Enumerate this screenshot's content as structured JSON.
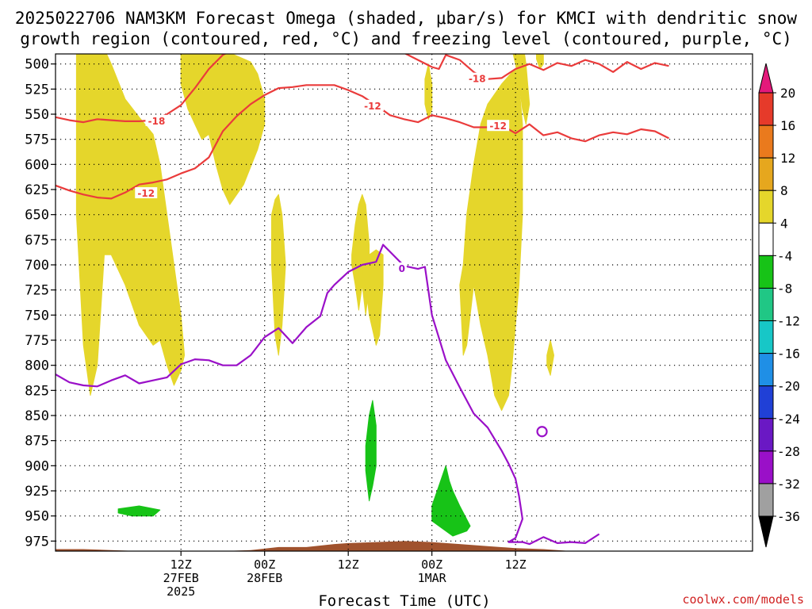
{
  "chart_data": {
    "type": "heatmap",
    "title_line1": "2025022706 NAM3KM Forecast Omega (shaded, μbar/s) for KMCI with dendritic snow",
    "title_line2": "growth region (contoured, red, °C) and freezing level (contoured, purple, °C)",
    "xlabel": "Forecast Time (UTC)",
    "credit": "coolwx.com/models",
    "y_axis": {
      "scale": "pressure (hPa)",
      "ticks": [
        500,
        525,
        550,
        575,
        600,
        625,
        650,
        675,
        700,
        725,
        750,
        775,
        800,
        825,
        850,
        875,
        900,
        925,
        950,
        975
      ],
      "ylim": [
        490,
        985
      ]
    },
    "x_axis": {
      "xlim": [
        -12,
        88
      ],
      "ticks": [
        {
          "h": 6,
          "line1": "12Z",
          "line2": "27FEB",
          "line3": "2025"
        },
        {
          "h": 18,
          "line1": "00Z",
          "line2": "28FEB",
          "line3": ""
        },
        {
          "h": 30,
          "line1": "12Z",
          "line2": "",
          "line3": ""
        },
        {
          "h": 42,
          "line1": "00Z",
          "line2": "1MAR",
          "line3": ""
        },
        {
          "h": 54,
          "line1": "12Z",
          "line2": "",
          "line3": ""
        }
      ]
    },
    "colorbar": {
      "labels": [
        "20",
        "16",
        "12",
        "8",
        "4",
        "-4",
        "-8",
        "-12",
        "-16",
        "-20",
        "-24",
        "-28",
        "-32",
        "-36"
      ],
      "colors": [
        "#e4197b",
        "#e63a2a",
        "#ea7a1d",
        "#e6a71e",
        "#e5d62b",
        "#ffffff",
        "#17c317",
        "#20c785",
        "#17c7c7",
        "#1f8fe6",
        "#2040d6",
        "#6a18c4",
        "#9a10c8",
        "#a0a0a0"
      ]
    },
    "colors": {
      "shade_low": "#e5d62b",
      "shade_sink": "#17c317",
      "dgz": "#ea3b3b",
      "freezing": "#9a10c8",
      "terrain": "#a0522d"
    },
    "contour_labels": [
      {
        "text": "-18",
        "h": 2.5,
        "p": 557,
        "color": "dgz"
      },
      {
        "text": "-12",
        "h": 1.0,
        "p": 629,
        "color": "dgz"
      },
      {
        "text": "-12",
        "h": 33.5,
        "p": 542,
        "color": "dgz"
      },
      {
        "text": "-18",
        "h": 48.5,
        "p": 515,
        "color": "dgz"
      },
      {
        "text": "-12",
        "h": 51.5,
        "p": 562,
        "color": "dgz"
      },
      {
        "text": "0",
        "h": 37.7,
        "p": 704,
        "color": "freezing"
      }
    ],
    "series": [
      {
        "name": "-18",
        "kind": "dgz",
        "x": [
          -12,
          -10,
          -8,
          -6,
          -4,
          -2,
          0,
          2,
          4,
          6,
          8,
          10,
          12,
          14,
          16,
          18
        ],
        "y": [
          553,
          556,
          558,
          555,
          556,
          557,
          557,
          556,
          550,
          541,
          524,
          505,
          491,
          484,
          479,
          476
        ]
      },
      {
        "name": "-18",
        "kind": "dgz",
        "x": [
          34,
          36,
          38,
          40,
          42,
          43,
          44,
          46,
          48,
          49,
          50,
          52,
          54,
          56,
          58,
          60,
          62,
          64,
          66,
          68,
          70,
          72,
          74,
          76
        ],
        "y": [
          478,
          482,
          489,
          496,
          503,
          505,
          491,
          496,
          508,
          512,
          515,
          514,
          505,
          500,
          506,
          499,
          502,
          496,
          500,
          508,
          498,
          505,
          499,
          502
        ]
      },
      {
        "name": "-12",
        "kind": "dgz",
        "x": [
          -12,
          -10,
          -8,
          -6,
          -4,
          -2,
          0,
          2,
          4,
          6,
          8,
          10,
          12,
          14,
          16,
          18,
          20,
          22,
          24,
          26,
          28,
          30,
          32,
          34,
          36,
          38,
          40,
          42,
          44,
          46,
          48,
          50,
          52,
          54,
          56,
          58,
          60,
          62,
          64,
          66,
          68,
          70,
          72,
          74,
          76
        ],
        "y": [
          621,
          626,
          630,
          633,
          634,
          628,
          620,
          618,
          615,
          609,
          604,
          593,
          567,
          552,
          540,
          531,
          524,
          523,
          521,
          521,
          521,
          526,
          532,
          541,
          551,
          555,
          558,
          551,
          554,
          558,
          563,
          563,
          561,
          569,
          560,
          571,
          568,
          574,
          577,
          571,
          568,
          570,
          565,
          567,
          574
        ]
      },
      {
        "name": "0",
        "kind": "freezing",
        "x": [
          -12,
          -10,
          -8,
          -6,
          -4,
          -2,
          0,
          2,
          4,
          6,
          8,
          10,
          12,
          14,
          16,
          18,
          20,
          22,
          24,
          26,
          27,
          28,
          30,
          32,
          34,
          35,
          36,
          38,
          40,
          41,
          42,
          44,
          46,
          47,
          48,
          50,
          52,
          53,
          54,
          54.5,
          55,
          54,
          53,
          55,
          56,
          58,
          60,
          62,
          64,
          66
        ],
        "y": [
          809,
          817,
          820,
          821,
          815,
          810,
          818,
          815,
          812,
          799,
          794,
          795,
          800,
          800,
          790,
          772,
          763,
          778,
          762,
          751,
          728,
          720,
          707,
          700,
          697,
          680,
          687,
          701,
          704,
          702,
          750,
          795,
          822,
          835,
          848,
          862,
          885,
          898,
          913,
          930,
          953,
          972,
          976,
          976,
          978,
          971,
          977,
          976,
          977,
          968
        ]
      }
    ],
    "regions": [
      {
        "kind": "up",
        "h": [
          -9,
          -7,
          -5,
          -4,
          -2,
          0,
          2,
          3,
          4,
          5,
          6,
          6.5,
          6,
          5,
          4,
          3,
          2,
          0,
          -2,
          -4,
          -5,
          -6,
          -7,
          -8,
          -9,
          -9
        ],
        "p": [
          485,
          485,
          485,
          500,
          535,
          553,
          570,
          600,
          650,
          700,
          750,
          790,
          805,
          820,
          800,
          775,
          780,
          760,
          720,
          690,
          690,
          800,
          830,
          780,
          650,
          600
        ]
      },
      {
        "kind": "up",
        "h": [
          6,
          8,
          9,
          10,
          12,
          14,
          16,
          17,
          18,
          18,
          17,
          15,
          13,
          12,
          11,
          10,
          9,
          8,
          7,
          6
        ],
        "p": [
          485,
          485,
          485,
          485,
          486,
          492,
          498,
          510,
          535,
          560,
          585,
          620,
          640,
          625,
          600,
          570,
          575,
          560,
          545,
          520
        ]
      },
      {
        "kind": "up",
        "h": [
          19,
          19.5,
          20,
          20.5,
          21,
          20.5,
          20,
          19.5,
          19
        ],
        "p": [
          650,
          635,
          630,
          650,
          700,
          760,
          790,
          770,
          700
        ]
      },
      {
        "kind": "up",
        "h": [
          30.5,
          31,
          31.5,
          32,
          32.5,
          33,
          33,
          32.5,
          32,
          31.5,
          31,
          30.5
        ],
        "p": [
          690,
          660,
          640,
          630,
          640,
          680,
          720,
          750,
          720,
          745,
          720,
          700
        ]
      },
      {
        "kind": "up",
        "h": [
          32,
          33,
          34,
          35,
          35,
          34.5,
          34,
          33,
          32.5,
          32
        ],
        "p": [
          700,
          690,
          685,
          690,
          720,
          770,
          780,
          750,
          720,
          710
        ]
      },
      {
        "kind": "up",
        "h": [
          46.5,
          47,
          48,
          49,
          50,
          51,
          52,
          53,
          54,
          54.5,
          55,
          55,
          54.5,
          54,
          53.5,
          53,
          52,
          51,
          50,
          49,
          48,
          47,
          46.5,
          46
        ],
        "p": [
          700,
          650,
          600,
          560,
          540,
          530,
          520,
          512,
          505,
          520,
          560,
          650,
          720,
          760,
          800,
          830,
          845,
          830,
          790,
          760,
          720,
          780,
          790,
          720
        ]
      },
      {
        "kind": "up",
        "h": [
          53.5,
          54,
          54.5,
          55,
          55.5,
          56,
          55.5,
          55,
          54.5,
          54
        ],
        "p": [
          485,
          470,
          470,
          475,
          500,
          540,
          560,
          545,
          520,
          500
        ]
      },
      {
        "kind": "up",
        "h": [
          57,
          57.5,
          58,
          58,
          57.5,
          57
        ],
        "p": [
          485,
          485,
          485,
          500,
          505,
          495
        ]
      },
      {
        "kind": "up",
        "h": [
          41,
          41.5,
          42,
          42,
          41.5,
          41
        ],
        "p": [
          515,
          500,
          520,
          545,
          555,
          540
        ]
      },
      {
        "kind": "up",
        "h": [
          58.5,
          59,
          59.5,
          59,
          58.5
        ],
        "p": [
          790,
          775,
          790,
          810,
          800
        ]
      },
      {
        "kind": "down",
        "h": [
          32.5,
          33,
          33.5,
          34,
          34,
          33.5,
          33,
          32.5,
          32.5
        ],
        "p": [
          880,
          850,
          835,
          860,
          900,
          920,
          935,
          905,
          880
        ]
      },
      {
        "kind": "down",
        "h": [
          42,
          43,
          44,
          44.5,
          45,
          46,
          47.5,
          47,
          45,
          43,
          42,
          42
        ],
        "p": [
          940,
          920,
          900,
          915,
          925,
          940,
          960,
          965,
          970,
          960,
          955,
          945
        ]
      },
      {
        "kind": "down",
        "h": [
          -3,
          0,
          3,
          2,
          -1,
          -3
        ],
        "p": [
          943,
          940,
          944,
          950,
          950,
          947
        ]
      }
    ],
    "terrain": {
      "h": [
        -12,
        -8,
        -4,
        0,
        4,
        8,
        12,
        16,
        20,
        24,
        28,
        30,
        34,
        38,
        42,
        46,
        50,
        54,
        58,
        60,
        62,
        64,
        66,
        68,
        70,
        72,
        74,
        76
      ],
      "p": [
        983,
        983,
        984,
        985,
        985,
        985,
        985,
        984,
        981,
        981,
        978,
        977,
        976,
        975,
        976,
        978,
        980,
        982,
        983,
        984,
        985,
        985,
        985,
        985,
        985,
        985,
        985,
        985
      ]
    }
  }
}
